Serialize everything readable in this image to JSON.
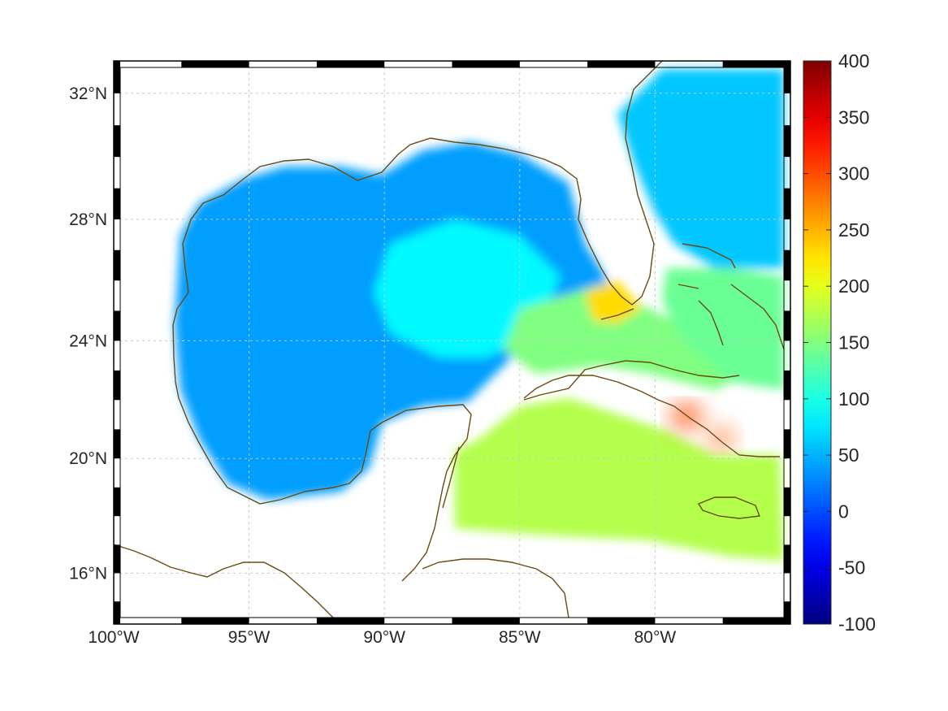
{
  "map": {
    "projection": "mercator",
    "extent": {
      "lon": [
        -100,
        -75
      ],
      "lat": [
        14.2,
        33
      ]
    },
    "field_range": [
      -100,
      400
    ],
    "colormap": "jet",
    "colors": {
      "coastline": "#6b4a10",
      "grid": "#c8c8c8",
      "frame": "#000000"
    }
  },
  "axes": {
    "x_ticks": [
      {
        "value": -100,
        "label": "100°W"
      },
      {
        "value": -95,
        "label": "95°W"
      },
      {
        "value": -90,
        "label": "90°W"
      },
      {
        "value": -85,
        "label": "85°W"
      },
      {
        "value": -80,
        "label": "80°W"
      }
    ],
    "y_ticks": [
      {
        "value": 16,
        "label": "16°N"
      },
      {
        "value": 20,
        "label": "20°N"
      },
      {
        "value": 24,
        "label": "24°N"
      },
      {
        "value": 28,
        "label": "28°N"
      },
      {
        "value": 32,
        "label": "32°N"
      }
    ]
  },
  "colorbar": {
    "min": -100,
    "max": 400,
    "ticks": [
      {
        "value": 400,
        "label": "400"
      },
      {
        "value": 350,
        "label": "350"
      },
      {
        "value": 300,
        "label": "300"
      },
      {
        "value": 250,
        "label": "250"
      },
      {
        "value": 200,
        "label": "200"
      },
      {
        "value": 150,
        "label": "150"
      },
      {
        "value": 100,
        "label": "100"
      },
      {
        "value": 50,
        "label": "50"
      },
      {
        "value": 0,
        "label": "0"
      },
      {
        "value": -50,
        "label": "-50"
      },
      {
        "value": -100,
        "label": "-100"
      }
    ]
  },
  "regions": [
    {
      "name": "gulf-of-mexico",
      "value": 40
    },
    {
      "name": "central-gulf-loop",
      "value": 85
    },
    {
      "name": "florida-straits",
      "value": 150
    },
    {
      "name": "caribbean-west",
      "value": 175
    },
    {
      "name": "atlantic-east-of-florida",
      "value": 60
    },
    {
      "name": "bahamas-banks",
      "value": 140
    },
    {
      "name": "cuba-hotspot-1",
      "value": 300
    },
    {
      "name": "cuba-hotspot-2",
      "value": 290
    },
    {
      "name": "south-florida-tip",
      "value": 230
    }
  ]
}
